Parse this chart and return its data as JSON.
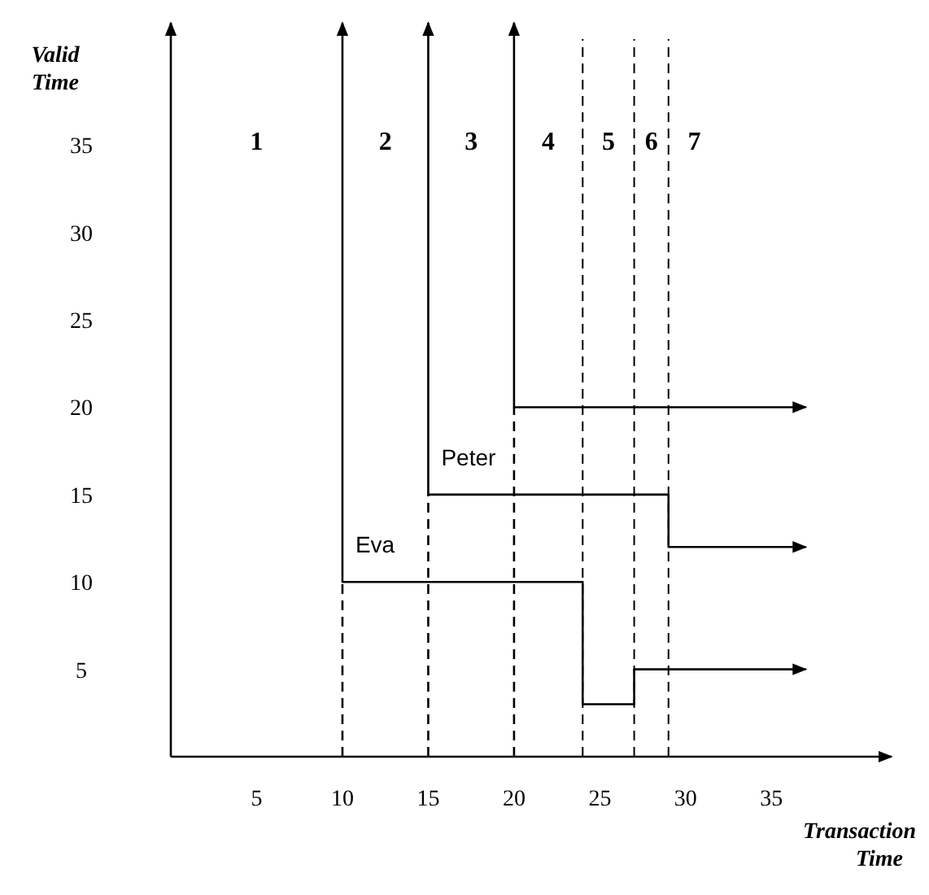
{
  "chart_data": {
    "type": "line",
    "xlabel": "Transaction Time",
    "ylabel": "Valid Time",
    "xlim": [
      0,
      42
    ],
    "ylim": [
      0,
      42
    ],
    "xticks": [
      5,
      10,
      15,
      20,
      25,
      30,
      35
    ],
    "yticks": [
      5,
      10,
      15,
      20,
      25,
      30,
      35
    ],
    "grid": false,
    "marker": "none",
    "series": [
      {
        "name": "Eva",
        "color": "#000000",
        "x": [
          10,
          10,
          24,
          24,
          27,
          27,
          37
        ],
        "values": [
          42,
          10,
          10,
          3,
          3,
          5,
          5
        ]
      },
      {
        "name": "Peter",
        "color": "#000000",
        "x": [
          15,
          15,
          29,
          29,
          37
        ],
        "values": [
          42,
          15,
          15,
          12,
          12
        ]
      },
      {
        "color": "#000000",
        "x": [
          20,
          20,
          37
        ],
        "values": [
          42,
          20,
          20
        ]
      },
      {
        "color": "#000000",
        "line_style": "dashed",
        "x": [
          10,
          10
        ],
        "values": [
          0,
          10
        ]
      },
      {
        "color": "#000000",
        "line_style": "dashed",
        "x": [
          15,
          15
        ],
        "values": [
          0,
          15
        ]
      },
      {
        "color": "#000000",
        "line_style": "dashed",
        "x": [
          20,
          20
        ],
        "values": [
          0,
          20
        ]
      }
    ],
    "ref_lines": [
      {
        "axis": "x",
        "value": 24,
        "line_style": "dashed",
        "color": "#000000"
      },
      {
        "axis": "x",
        "value": 27,
        "line_style": "dashed",
        "color": "#000000"
      },
      {
        "axis": "x",
        "value": 29,
        "line_style": "dashed",
        "color": "#000000"
      }
    ],
    "annotations": [
      "1",
      "2",
      "3",
      "4",
      "5",
      "6",
      "7"
    ]
  }
}
